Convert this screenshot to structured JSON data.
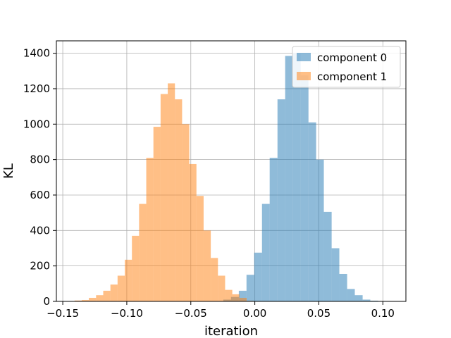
{
  "chart_data": {
    "type": "bar",
    "subtype": "overlapping-histogram",
    "title": "",
    "xlabel": "iteration",
    "ylabel": "KL",
    "xlim": [
      -0.155,
      0.118
    ],
    "ylim": [
      0,
      1470
    ],
    "xticks": [
      -0.15,
      -0.1,
      -0.05,
      0.0,
      0.05,
      0.1
    ],
    "xtick_labels": [
      "−0.15",
      "−0.10",
      "−0.05",
      "0.00",
      "0.05",
      "0.10"
    ],
    "yticks": [
      0,
      200,
      400,
      600,
      800,
      1000,
      1200,
      1400
    ],
    "ytick_labels": [
      "0",
      "200",
      "400",
      "600",
      "800",
      "1000",
      "1200",
      "1400"
    ],
    "grid": true,
    "legend_position": "upper-right",
    "series": [
      {
        "name": "component 0",
        "color": "#1f77b4",
        "alpha": 0.5,
        "bins": [
          [
            -0.0307,
            -0.0246,
            1
          ],
          [
            -0.0246,
            -0.0186,
            10
          ],
          [
            -0.0186,
            -0.0125,
            25
          ],
          [
            -0.0125,
            -0.0065,
            60
          ],
          [
            -0.0065,
            -0.0005,
            150
          ],
          [
            -0.0005,
            0.0056,
            275
          ],
          [
            0.0056,
            0.0116,
            550
          ],
          [
            0.0116,
            0.0177,
            810
          ],
          [
            0.0177,
            0.0237,
            1140
          ],
          [
            0.0237,
            0.0298,
            1385
          ],
          [
            0.0298,
            0.0358,
            1400
          ],
          [
            0.0358,
            0.0419,
            1275
          ],
          [
            0.0419,
            0.0479,
            1010
          ],
          [
            0.0479,
            0.0539,
            800
          ],
          [
            0.0539,
            0.06,
            505
          ],
          [
            0.06,
            0.066,
            300
          ],
          [
            0.066,
            0.0721,
            155
          ],
          [
            0.0721,
            0.0781,
            70
          ],
          [
            0.0781,
            0.0842,
            35
          ],
          [
            0.0842,
            0.0902,
            10
          ],
          [
            0.0902,
            0.0963,
            4
          ],
          [
            0.0963,
            0.1023,
            2
          ],
          [
            0.1023,
            0.1084,
            1
          ]
        ]
      },
      {
        "name": "component 1",
        "color": "#ff7f0e",
        "alpha": 0.5,
        "bins": [
          [
            -0.1408,
            -0.1352,
            5
          ],
          [
            -0.1352,
            -0.1296,
            8
          ],
          [
            -0.1296,
            -0.124,
            20
          ],
          [
            -0.124,
            -0.1184,
            35
          ],
          [
            -0.1184,
            -0.1128,
            60
          ],
          [
            -0.1128,
            -0.1072,
            95
          ],
          [
            -0.1072,
            -0.1016,
            145
          ],
          [
            -0.1016,
            -0.096,
            235
          ],
          [
            -0.096,
            -0.0904,
            370
          ],
          [
            -0.0904,
            -0.0848,
            550
          ],
          [
            -0.0848,
            -0.0792,
            810
          ],
          [
            -0.0792,
            -0.0736,
            985
          ],
          [
            -0.0736,
            -0.068,
            1170
          ],
          [
            -0.068,
            -0.0624,
            1230
          ],
          [
            -0.0624,
            -0.0568,
            1140
          ],
          [
            -0.0568,
            -0.0512,
            1000
          ],
          [
            -0.0512,
            -0.0456,
            775
          ],
          [
            -0.0456,
            -0.04,
            595
          ],
          [
            -0.04,
            -0.0344,
            400
          ],
          [
            -0.0344,
            -0.0288,
            245
          ],
          [
            -0.0288,
            -0.0232,
            145
          ],
          [
            -0.0232,
            -0.0176,
            65
          ],
          [
            -0.0176,
            -0.012,
            40
          ],
          [
            -0.012,
            -0.0064,
            20
          ],
          [
            -0.0064,
            -0.0008,
            3
          ]
        ]
      }
    ]
  }
}
